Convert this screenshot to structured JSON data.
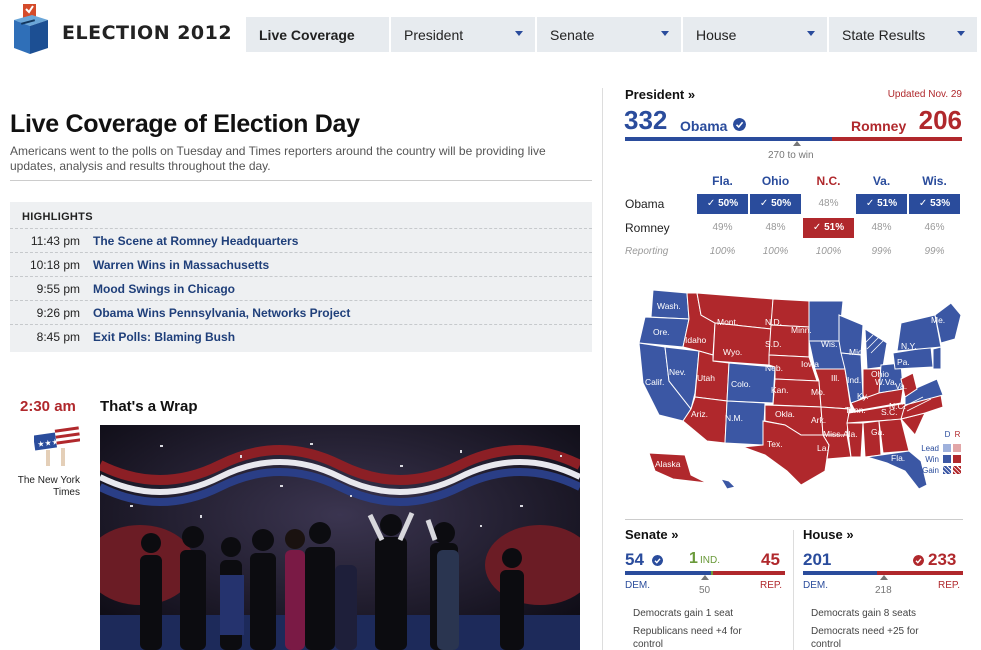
{
  "nav": {
    "brand": "ELECTION 2012",
    "tabs": [
      {
        "label": "Live Coverage",
        "active": true
      },
      {
        "label": "President",
        "dropdown": true
      },
      {
        "label": "Senate",
        "dropdown": true
      },
      {
        "label": "House",
        "dropdown": true
      },
      {
        "label": "State Results",
        "dropdown": true
      }
    ]
  },
  "main": {
    "title": "Live Coverage of Election Day",
    "lede": "Americans went to the polls on Tuesday and Times reporters around the country will be providing live updates, analysis and results throughout the day.",
    "highlights": {
      "title": "HIGHLIGHTS",
      "items": [
        {
          "time": "11:43 pm",
          "text": "The Scene at Romney Headquarters"
        },
        {
          "time": "10:18 pm",
          "text": "Warren Wins in Massachusetts"
        },
        {
          "time": "9:55 pm",
          "text": "Mood Swings in Chicago"
        },
        {
          "time": "9:26 pm",
          "text": "Obama Wins Pennsylvania, Networks Project"
        },
        {
          "time": "8:45 pm",
          "text": "Exit Polls: Blaming Bush"
        }
      ]
    },
    "post": {
      "time": "2:30 am",
      "title": "That's a Wrap",
      "source_line1": "The New York",
      "source_line2": "Times"
    }
  },
  "president": {
    "heading": "President »",
    "updated": "Updated Nov. 29",
    "obama_votes": "332",
    "obama_name": "Obama",
    "romney_name": "Romney",
    "romney_votes": "206",
    "obama_share": 0.617,
    "to_win": "270 to win",
    "states": [
      "Fla.",
      "Ohio",
      "N.C.",
      "Va.",
      "Wis."
    ],
    "obama_label": "Obama",
    "romney_label": "Romney",
    "reporting_label": "Reporting",
    "obama_pct": [
      "50%",
      "50%",
      "48%",
      "51%",
      "53%"
    ],
    "romney_pct": [
      "49%",
      "48%",
      "51%",
      "48%",
      "46%"
    ],
    "winner": [
      "D",
      "D",
      "R",
      "D",
      "D"
    ],
    "reporting": [
      "100%",
      "100%",
      "100%",
      "99%",
      "99%"
    ]
  },
  "map": {
    "labels": [
      "Wash.",
      "Ore.",
      "Calif.",
      "Nev.",
      "Idaho",
      "Mont.",
      "Wyo.",
      "Utah",
      "Ariz.",
      "Colo.",
      "N.M.",
      "N.D.",
      "S.D.",
      "Neb.",
      "Kan.",
      "Okla.",
      "Tex.",
      "Minn.",
      "Iowa",
      "Mo.",
      "Ark.",
      "La.",
      "Wis.",
      "Ill.",
      "Mich",
      "Ind.",
      "Ohio",
      "Ky.",
      "Tenn.",
      "Miss.",
      "Ala.",
      "Ga.",
      "Fla.",
      "S.C.",
      "N.C.",
      "Va.",
      "W.Va.",
      "Pa.",
      "N.Y.",
      "Me.",
      "Alaska"
    ],
    "legend": {
      "d": "D",
      "r": "R",
      "lead": "Lead",
      "win": "Win",
      "gain": "Gain"
    },
    "colors": {
      "dem": "#3b57a4",
      "rep": "#b0282c"
    }
  },
  "senate": {
    "heading": "Senate »",
    "dem": "54",
    "ind": "1",
    "ind_label": "IND.",
    "rep": "45",
    "dem_label": "DEM.",
    "rep_label": "REP.",
    "threshold": "50",
    "note1": "Democrats gain 1 seat",
    "note2": "Republicans need +4 for control"
  },
  "house": {
    "heading": "House »",
    "dem": "201",
    "rep": "233",
    "dem_label": "DEM.",
    "rep_label": "REP.",
    "threshold": "218",
    "note1": "Democrats gain 8 seats",
    "note2": "Democrats need +25 for control"
  }
}
